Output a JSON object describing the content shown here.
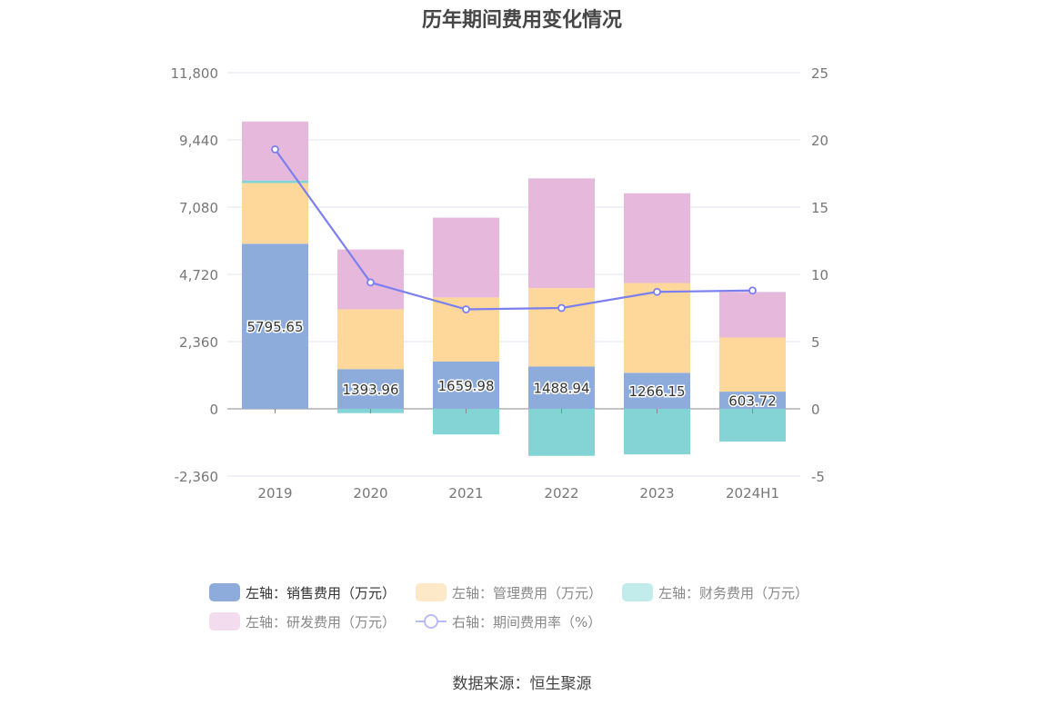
{
  "title": "历年期间费用变化情况",
  "source": "数据来源：恒生聚源",
  "colors": {
    "sales": "#8eacdb",
    "admin": "#fed89a",
    "finance": "#84d4d6",
    "rd": "#e6b8dc",
    "rate": "#7b7ff0"
  },
  "chart_data": {
    "type": "bar",
    "stacked": true,
    "categories": [
      "2019",
      "2020",
      "2021",
      "2022",
      "2023",
      "2024H1"
    ],
    "left_axis": {
      "ticks": [
        "11,800",
        "9,440",
        "7,080",
        "4,720",
        "2,360",
        "0",
        "-2,360"
      ],
      "range": [
        -2360,
        11800
      ]
    },
    "right_axis": {
      "ticks": [
        "25",
        "20",
        "15",
        "10",
        "5",
        "0",
        "-5"
      ],
      "range": [
        -5,
        25
      ]
    },
    "series": [
      {
        "name": "左轴：销售费用（万元）",
        "key": "sales",
        "values": [
          5795.65,
          1393.96,
          1659.98,
          1488.94,
          1266.15,
          603.72
        ]
      },
      {
        "name": "左轴：管理费用（万元）",
        "key": "admin",
        "values": [
          2130,
          2100,
          2250,
          2750,
          3150,
          1900
        ]
      },
      {
        "name": "左轴：财务费用（万元）",
        "key": "finance",
        "values": [
          90,
          -150,
          -900,
          -1650,
          -1600,
          -1150
        ]
      },
      {
        "name": "左轴：研发费用（万元）",
        "key": "rd",
        "values": [
          2070,
          2100,
          2800,
          3850,
          3150,
          1600
        ]
      }
    ],
    "line": {
      "name": "右轴：期间费用率（%）",
      "key": "rate",
      "values": [
        19.3,
        9.4,
        7.4,
        7.5,
        8.7,
        8.8
      ]
    },
    "data_labels": [
      "5795.65",
      "1393.96",
      "1659.98",
      "1488.94",
      "1266.15",
      "603.72"
    ]
  },
  "legend": {
    "sales": "左轴：销售费用（万元）",
    "admin": "左轴：管理费用（万元）",
    "finance": "左轴：财务费用（万元）",
    "rd": "左轴：研发费用（万元）",
    "rate": "右轴：期间费用率（%）"
  }
}
